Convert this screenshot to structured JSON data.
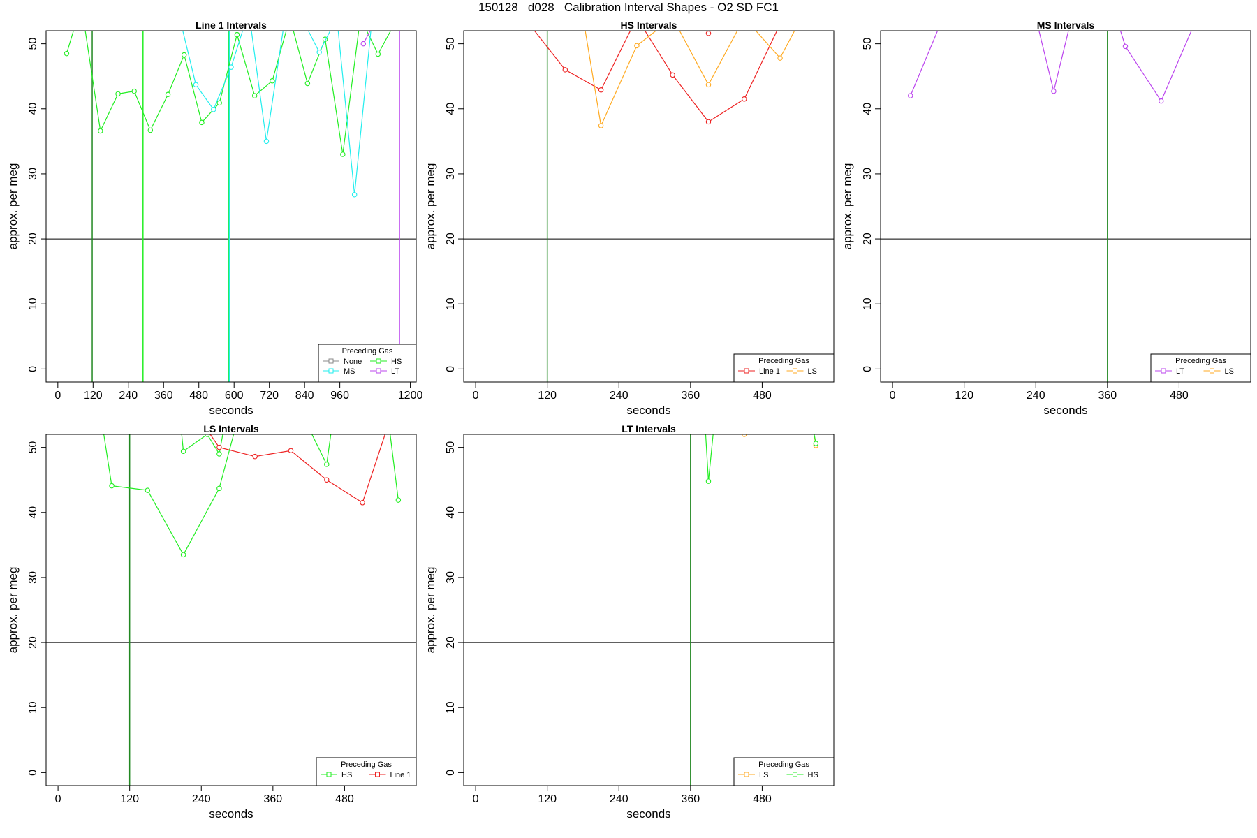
{
  "figure_title": "150128   d028   Calibration Interval Shapes - O2 SD FC1",
  "colors": {
    "None": "#888888",
    "HS": "#22ee22",
    "MS": "#22eeee",
    "LT": "#bb44ee",
    "Line 1": "#ee2222",
    "LS": "#ffaa22",
    "green_vline": "#228822",
    "hline": "#000000"
  },
  "chart_data": [
    {
      "type": "line",
      "title": "Line 1 Intervals",
      "xlabel": "seconds",
      "ylabel": "approx. per meg",
      "xlim": [
        -40,
        1220
      ],
      "ylim": [
        -2,
        52
      ],
      "xticks": [
        0,
        120,
        240,
        360,
        480,
        600,
        720,
        840,
        960,
        1200
      ],
      "yticks": [
        0,
        10,
        20,
        30,
        40,
        50
      ],
      "hline": 20,
      "vlines": [
        {
          "x": 117,
          "color": "#228822"
        },
        {
          "x": 290,
          "color": "#22ee22"
        },
        {
          "x": 581,
          "color": "#22ee22"
        },
        {
          "x": 584,
          "color": "#22eeee"
        },
        {
          "x": 1163,
          "color": "#bb44ee"
        }
      ],
      "legend": {
        "title": "Preceding Gas",
        "entries": [
          "None",
          "HS",
          "MS",
          "LT"
        ],
        "ncol": 2
      },
      "series": [
        {
          "name": "HS",
          "x": [
            30,
            60,
            90,
            145,
            205,
            260,
            315,
            375,
            430,
            490,
            550,
            610,
            670,
            730,
            790,
            850,
            910,
            970,
            1030,
            1090,
            1145
          ],
          "y": [
            48.5,
            53,
            53,
            36.6,
            42.3,
            42.7,
            36.7,
            42.2,
            48.3,
            37.9,
            40.9,
            51.4,
            42,
            44.3,
            54,
            43.9,
            50.7,
            33,
            54,
            48.4,
            53
          ]
        },
        {
          "name": "MS",
          "x": [
            420,
            470,
            530,
            590,
            650,
            710,
            770,
            830,
            890,
            950,
            1010,
            1070,
            1130
          ],
          "y": [
            53,
            43.7,
            39.9,
            46.4,
            55,
            35,
            53,
            54,
            48.7,
            54,
            26.8,
            54,
            53
          ]
        },
        {
          "name": "LT",
          "x": [
            1040,
            1075,
            1110
          ],
          "y": [
            50,
            53,
            54
          ]
        }
      ]
    },
    {
      "type": "line",
      "title": "HS Intervals",
      "xlabel": "seconds",
      "ylabel": "approx. per meg",
      "xlim": [
        -20,
        600
      ],
      "ylim": [
        -2,
        52
      ],
      "xticks": [
        0,
        120,
        240,
        360,
        480
      ],
      "yticks": [
        0,
        10,
        20,
        30,
        40,
        50
      ],
      "hline": 20,
      "vlines": [
        {
          "x": 120,
          "color": "#228822"
        }
      ],
      "legend": {
        "title": "Preceding Gas",
        "entries": [
          "Line 1",
          "LS"
        ],
        "ncol": 2
      },
      "series": [
        {
          "name": "Line 1",
          "x": [
            90,
            150,
            210,
            270,
            330,
            390,
            450,
            510
          ],
          "y": [
            53,
            46,
            42.9,
            54,
            45.2,
            38,
            41.5,
            53
          ]
        },
        {
          "name": "LS",
          "x": [
            180,
            210,
            270,
            330,
            390,
            450,
            510,
            540
          ],
          "y": [
            54,
            37.4,
            49.7,
            54,
            43.7,
            54,
            47.8,
            53
          ]
        },
        {
          "name": "Line 1",
          "x": [
            375,
            390,
            405
          ],
          "y": [
            54,
            51.6,
            54
          ]
        }
      ]
    },
    {
      "type": "line",
      "title": "MS Intervals",
      "xlabel": "seconds",
      "ylabel": "approx. per meg",
      "xlim": [
        -20,
        600
      ],
      "ylim": [
        -2,
        52
      ],
      "xticks": [
        0,
        120,
        240,
        360,
        480
      ],
      "yticks": [
        0,
        10,
        20,
        30,
        40,
        50
      ],
      "hline": 20,
      "vlines": [
        {
          "x": 360,
          "color": "#228822"
        }
      ],
      "legend": {
        "title": "Preceding Gas",
        "entries": [
          "LT",
          "LS"
        ],
        "ncol": 2
      },
      "series": [
        {
          "name": "LT",
          "x": [
            30,
            80,
            240,
            270,
            300
          ],
          "y": [
            42,
            53,
            54,
            42.7,
            54
          ]
        },
        {
          "name": "LT",
          "x": [
            375,
            390,
            450,
            510
          ],
          "y": [
            54,
            49.6,
            41.2,
            54
          ]
        }
      ]
    },
    {
      "type": "line",
      "title": "LS Intervals",
      "xlabel": "seconds",
      "ylabel": "approx. per meg",
      "xlim": [
        -20,
        600
      ],
      "ylim": [
        -2,
        52
      ],
      "xticks": [
        0,
        120,
        240,
        360,
        480
      ],
      "yticks": [
        0,
        10,
        20,
        30,
        40,
        50
      ],
      "hline": 20,
      "vlines": [
        {
          "x": 120,
          "color": "#228822"
        }
      ],
      "legend": {
        "title": "Preceding Gas",
        "entries": [
          "HS",
          "Line 1"
        ],
        "ncol": 2
      },
      "series": [
        {
          "name": "HS",
          "x": [
            75,
            90,
            150,
            210,
            270,
            300
          ],
          "y": [
            53,
            44.1,
            43.4,
            33.5,
            43.7,
            54
          ]
        },
        {
          "name": "HS",
          "x": [
            205,
            210,
            250,
            270,
            280
          ],
          "y": [
            54,
            49.4,
            52,
            49,
            54
          ]
        },
        {
          "name": "HS",
          "x": [
            420,
            450,
            460
          ],
          "y": [
            53,
            47.4,
            54
          ]
        },
        {
          "name": "HS",
          "x": [
            555,
            570
          ],
          "y": [
            53,
            41.9
          ]
        },
        {
          "name": "Line 1",
          "x": [
            240,
            270,
            330,
            390,
            450,
            510,
            555
          ],
          "y": [
            54,
            50,
            48.6,
            49.5,
            45,
            41.5,
            54
          ]
        }
      ]
    },
    {
      "type": "line",
      "title": "LT Intervals",
      "xlabel": "seconds",
      "ylabel": "approx. per meg",
      "xlim": [
        -20,
        600
      ],
      "ylim": [
        -2,
        52
      ],
      "xticks": [
        0,
        120,
        240,
        360,
        480
      ],
      "yticks": [
        0,
        10,
        20,
        30,
        40,
        50
      ],
      "hline": 20,
      "vlines": [
        {
          "x": 360,
          "color": "#228822"
        }
      ],
      "legend": {
        "title": "Preceding Gas",
        "entries": [
          "LS",
          "HS"
        ],
        "ncol": 2
      },
      "series": [
        {
          "name": "HS",
          "x": [
            384,
            390,
            400
          ],
          "y": [
            54,
            44.8,
            54
          ]
        },
        {
          "name": "LS",
          "x": [
            440,
            450,
            460
          ],
          "y": [
            53,
            52,
            53
          ]
        },
        {
          "name": "LS",
          "x": [
            565,
            570
          ],
          "y": [
            53,
            50.3
          ]
        },
        {
          "name": "HS",
          "x": [
            565,
            570
          ],
          "y": [
            53,
            50.6
          ]
        }
      ]
    }
  ]
}
